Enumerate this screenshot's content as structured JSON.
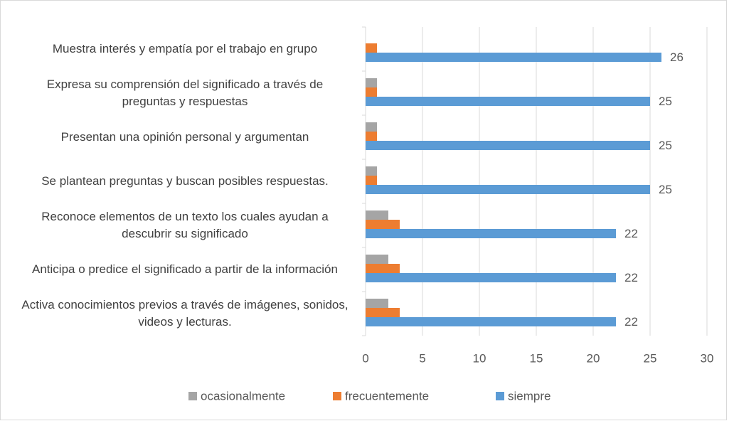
{
  "chart_data": {
    "type": "bar",
    "orientation": "horizontal",
    "categories": [
      "Muestra interés y empatía por el trabajo en grupo",
      "Expresa su comprensión del significado a través de preguntas y respuestas",
      "Presentan una opinión personal y argumentan",
      "Se plantean preguntas y buscan posibles respuestas.",
      "Reconoce elementos de un texto los cuales ayudan a descubrir su significado",
      "Anticipa o predice el significado a partir de la información",
      "Activa conocimientos previos a través de imágenes, sonidos, videos y lecturas."
    ],
    "series": [
      {
        "name": "ocasionalmente",
        "color": "#a5a5a5",
        "values": [
          0,
          1,
          1,
          1,
          2,
          2,
          2
        ]
      },
      {
        "name": "frecuentemente",
        "color": "#ed7d31",
        "values": [
          1,
          1,
          1,
          1,
          3,
          3,
          3
        ]
      },
      {
        "name": "siempre",
        "color": "#5b9bd5",
        "values": [
          26,
          25,
          25,
          25,
          22,
          22,
          22
        ],
        "data_labels": true
      }
    ],
    "xlim": [
      0,
      30
    ],
    "xticks": [
      0,
      5,
      10,
      15,
      20,
      25,
      30
    ],
    "grid": true,
    "legend": "bottom"
  }
}
